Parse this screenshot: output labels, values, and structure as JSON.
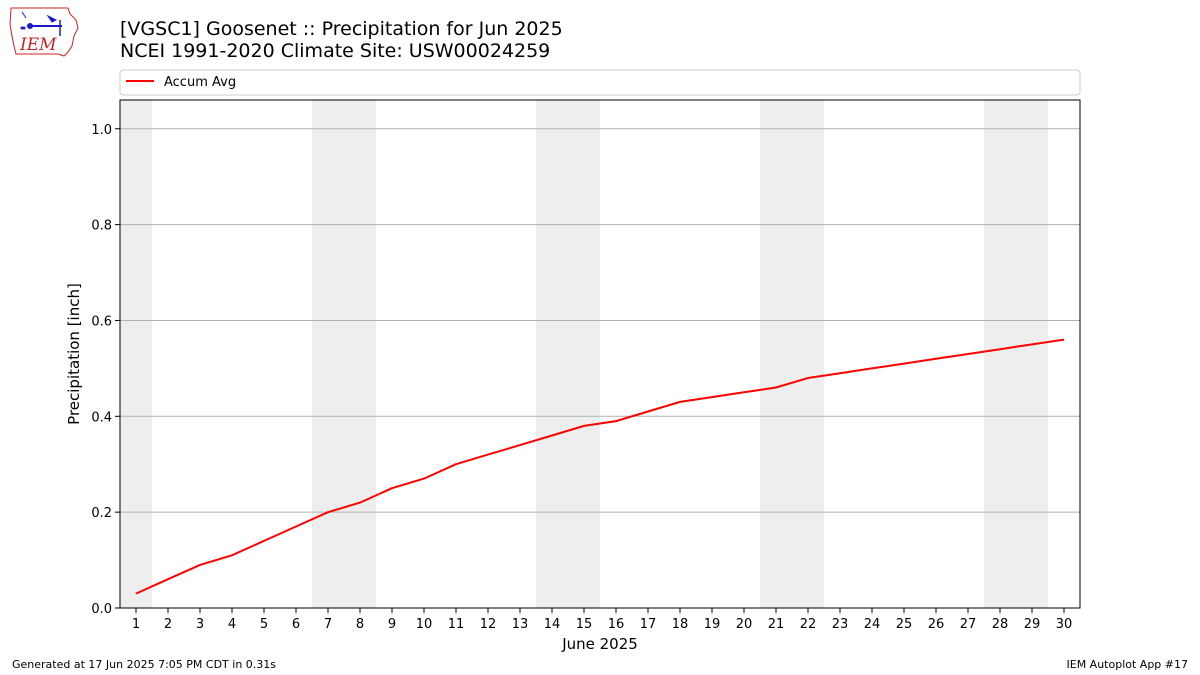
{
  "header": {
    "logo_text": "IEM",
    "title_line1": "[VGSC1] Goosenet :: Precipitation for Jun 2025",
    "title_line2": "NCEI 1991-2020 Climate Site: USW00024259"
  },
  "footer": {
    "left": "Generated at 17 Jun 2025 7:05 PM CDT in 0.31s",
    "right": "IEM Autoplot App #17"
  },
  "colors": {
    "line": "#ff0000",
    "weekend_band": "#eeeeee",
    "grid": "#b0b0b0",
    "logo_outline": "#cc2222",
    "logo_glyph": "#1a1acc"
  },
  "chart_data": {
    "type": "line",
    "title": "",
    "xlabel": "June 2025",
    "ylabel": "Precipitation [inch]",
    "xlim": [
      0.5,
      30.5
    ],
    "ylim": [
      0,
      1.06
    ],
    "yticks": [
      0.0,
      0.2,
      0.4,
      0.6,
      0.8,
      1.0
    ],
    "ytick_labels": [
      "0.0",
      "0.2",
      "0.4",
      "0.6",
      "0.8",
      "1.0"
    ],
    "x": [
      1,
      2,
      3,
      4,
      5,
      6,
      7,
      8,
      9,
      10,
      11,
      12,
      13,
      14,
      15,
      16,
      17,
      18,
      19,
      20,
      21,
      22,
      23,
      24,
      25,
      26,
      27,
      28,
      29,
      30
    ],
    "xtick_labels": [
      "1",
      "2",
      "3",
      "4",
      "5",
      "6",
      "7",
      "8",
      "9",
      "10",
      "11",
      "12",
      "13",
      "14",
      "15",
      "16",
      "17",
      "18",
      "19",
      "20",
      "21",
      "22",
      "23",
      "24",
      "25",
      "26",
      "27",
      "28",
      "29",
      "30"
    ],
    "weekend_days": [
      1,
      7,
      8,
      14,
      15,
      21,
      22,
      28,
      29
    ],
    "grid": "y",
    "legend_position": "top, above plot",
    "series": [
      {
        "name": "Accum Avg",
        "color": "#ff0000",
        "values": [
          0.03,
          0.06,
          0.09,
          0.11,
          0.14,
          0.17,
          0.2,
          0.22,
          0.25,
          0.27,
          0.3,
          0.32,
          0.34,
          0.36,
          0.38,
          0.39,
          0.41,
          0.43,
          0.44,
          0.45,
          0.46,
          0.48,
          0.49,
          0.5,
          0.51,
          0.52,
          0.53,
          0.54,
          0.55,
          0.56
        ]
      }
    ]
  }
}
